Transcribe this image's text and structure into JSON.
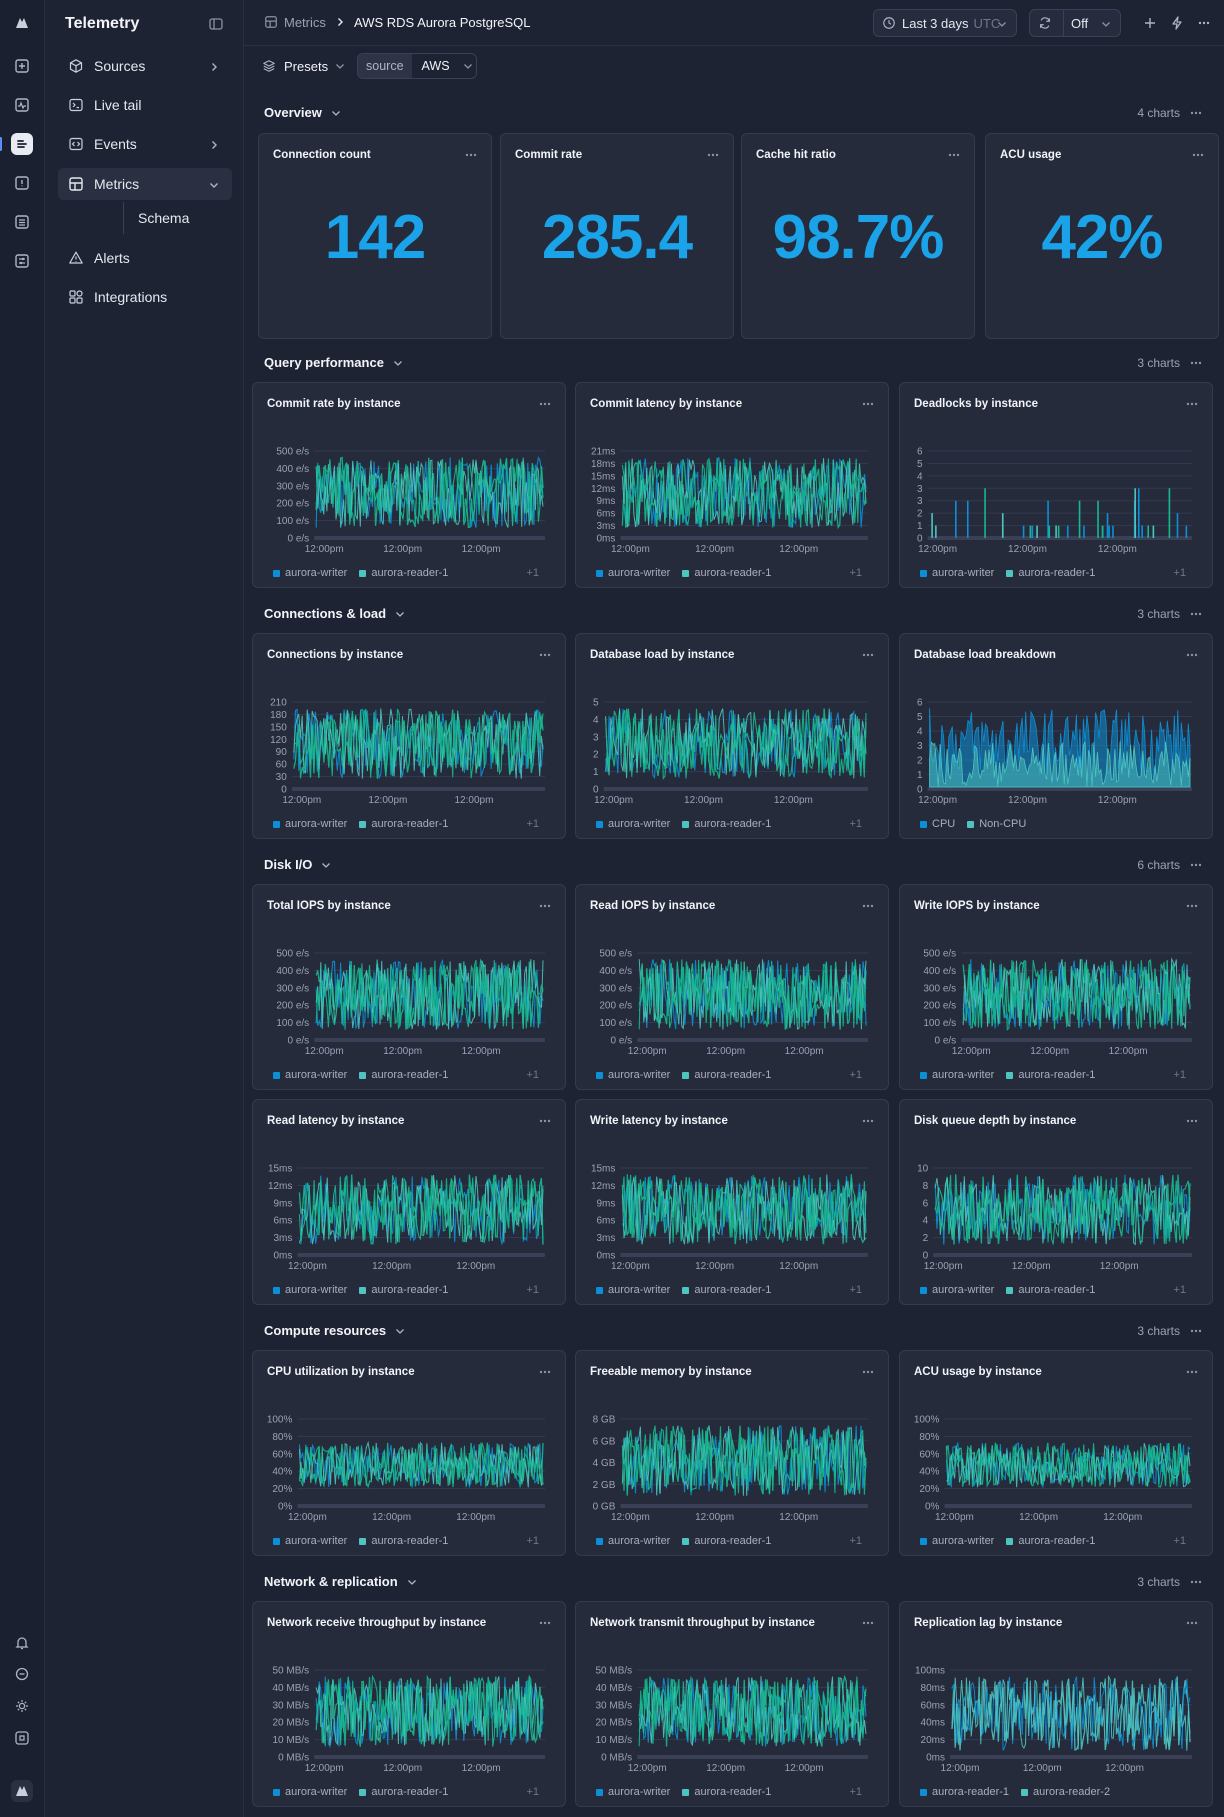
{
  "app": {
    "name": "Telemetry"
  },
  "sidebar": {
    "items": [
      {
        "label": "Sources",
        "icon": "box-icon",
        "chevron": true
      },
      {
        "label": "Live tail",
        "icon": "terminal-icon",
        "chevron": false
      },
      {
        "label": "Events",
        "icon": "code-icon",
        "chevron": true
      },
      {
        "label": "Metrics",
        "icon": "grid-icon",
        "chevron": true,
        "active": true
      },
      {
        "label": "Alerts",
        "icon": "warning-icon",
        "chevron": false
      },
      {
        "label": "Integrations",
        "icon": "integrations-icon",
        "chevron": false
      }
    ],
    "sub_item": "Schema"
  },
  "breadcrumb": {
    "parent": "Metrics",
    "current": "AWS RDS Aurora PostgreSQL"
  },
  "toolbar": {
    "time_range": "Last 3 days",
    "timezone": "UTC",
    "refresh": "Off"
  },
  "filters": {
    "presets": "Presets",
    "source_key": "source",
    "source_value": "AWS"
  },
  "colors": {
    "accent": "#1aa3e8",
    "writer": "#0c8fd6",
    "reader": "#4ec4c0",
    "green": "#17b890"
  },
  "overview": {
    "title": "Overview",
    "count": "4 charts",
    "stats": [
      {
        "title": "Connection count",
        "value": "142"
      },
      {
        "title": "Commit rate",
        "value": "285.4"
      },
      {
        "title": "Cache hit ratio",
        "value": "98.7%"
      },
      {
        "title": "ACU usage",
        "value": "42%"
      }
    ]
  },
  "sections": [
    {
      "title": "Query performance",
      "count": "3 charts",
      "charts": [
        {
          "title": "Commit rate by instance",
          "yticks": [
            "500 e/s",
            "400 e/s",
            "300 e/s",
            "200 e/s",
            "100 e/s",
            "0 e/s"
          ],
          "xticks": [
            "12:00pm",
            "12:00pm",
            "12:00pm"
          ],
          "legend": [
            "aurora-writer",
            "aurora-reader-1"
          ],
          "more": "+1"
        },
        {
          "title": "Commit latency by instance",
          "yticks": [
            "21ms",
            "18ms",
            "15ms",
            "12ms",
            "9ms",
            "6ms",
            "3ms",
            "0ms"
          ],
          "xticks": [
            "12:00pm",
            "12:00pm",
            "12:00pm"
          ],
          "legend": [
            "aurora-writer",
            "aurora-reader-1"
          ],
          "more": "+1"
        },
        {
          "title": "Deadlocks by instance",
          "yticks": [
            "6",
            "5",
            "4",
            "3",
            "3",
            "2",
            "1",
            "0"
          ],
          "xticks": [
            "12:00pm",
            "12:00pm",
            "12:00pm"
          ],
          "legend": [
            "aurora-writer",
            "aurora-reader-1"
          ],
          "more": "+1"
        }
      ]
    },
    {
      "title": "Connections & load",
      "count": "3 charts",
      "charts": [
        {
          "title": "Connections by instance",
          "yticks": [
            "210",
            "180",
            "150",
            "120",
            "90",
            "60",
            "30",
            "0"
          ],
          "xticks": [
            "12:00pm",
            "12:00pm",
            "12:00pm"
          ],
          "legend": [
            "aurora-writer",
            "aurora-reader-1"
          ],
          "more": "+1"
        },
        {
          "title": "Database load by instance",
          "yticks": [
            "5",
            "4",
            "3",
            "2",
            "1",
            "0"
          ],
          "xticks": [
            "12:00pm",
            "12:00pm",
            "12:00pm"
          ],
          "legend": [
            "aurora-writer",
            "aurora-reader-1"
          ],
          "more": "+1"
        },
        {
          "title": "Database load breakdown",
          "yticks": [
            "6",
            "5",
            "4",
            "3",
            "2",
            "1",
            "0"
          ],
          "xticks": [
            "12:00pm",
            "12:00pm",
            "12:00pm"
          ],
          "legend": [
            "CPU",
            "Non-CPU"
          ],
          "more": ""
        }
      ]
    },
    {
      "title": "Disk I/O",
      "count": "6 charts",
      "charts": [
        {
          "title": "Total IOPS by instance",
          "yticks": [
            "500 e/s",
            "400 e/s",
            "300 e/s",
            "200 e/s",
            "100 e/s",
            "0 e/s"
          ],
          "xticks": [
            "12:00pm",
            "12:00pm",
            "12:00pm"
          ],
          "legend": [
            "aurora-writer",
            "aurora-reader-1"
          ],
          "more": "+1"
        },
        {
          "title": "Read IOPS by instance",
          "yticks": [
            "500 e/s",
            "400 e/s",
            "300 e/s",
            "200 e/s",
            "100 e/s",
            "0 e/s"
          ],
          "xticks": [
            "12:00pm",
            "12:00pm",
            "12:00pm"
          ],
          "legend": [
            "aurora-writer",
            "aurora-reader-1"
          ],
          "more": "+1"
        },
        {
          "title": "Write IOPS by instance",
          "yticks": [
            "500 e/s",
            "400 e/s",
            "300 e/s",
            "200 e/s",
            "100 e/s",
            "0 e/s"
          ],
          "xticks": [
            "12:00pm",
            "12:00pm",
            "12:00pm"
          ],
          "legend": [
            "aurora-writer",
            "aurora-reader-1"
          ],
          "more": "+1"
        },
        {
          "title": "Read latency by instance",
          "yticks": [
            "15ms",
            "12ms",
            "9ms",
            "6ms",
            "3ms",
            "0ms"
          ],
          "xticks": [
            "12:00pm",
            "12:00pm",
            "12:00pm"
          ],
          "legend": [
            "aurora-writer",
            "aurora-reader-1"
          ],
          "more": "+1"
        },
        {
          "title": "Write latency by instance",
          "yticks": [
            "15ms",
            "12ms",
            "9ms",
            "6ms",
            "3ms",
            "0ms"
          ],
          "xticks": [
            "12:00pm",
            "12:00pm",
            "12:00pm"
          ],
          "legend": [
            "aurora-writer",
            "aurora-reader-1"
          ],
          "more": "+1"
        },
        {
          "title": "Disk queue depth by instance",
          "yticks": [
            "10",
            "8",
            "6",
            "4",
            "2",
            "0"
          ],
          "xticks": [
            "12:00pm",
            "12:00pm",
            "12:00pm"
          ],
          "legend": [
            "aurora-writer",
            "aurora-reader-1"
          ],
          "more": "+1"
        }
      ]
    },
    {
      "title": "Compute resources",
      "count": "3 charts",
      "charts": [
        {
          "title": "CPU utilization by instance",
          "yticks": [
            "100%",
            "80%",
            "60%",
            "40%",
            "20%",
            "0%"
          ],
          "xticks": [
            "12:00pm",
            "12:00pm",
            "12:00pm"
          ],
          "legend": [
            "aurora-writer",
            "aurora-reader-1"
          ],
          "more": "+1"
        },
        {
          "title": "Freeable memory by instance",
          "yticks": [
            "8 GB",
            "6 GB",
            "4 GB",
            "2 GB",
            "0 GB"
          ],
          "xticks": [
            "12:00pm",
            "12:00pm",
            "12:00pm"
          ],
          "legend": [
            "aurora-writer",
            "aurora-reader-1"
          ],
          "more": "+1"
        },
        {
          "title": "ACU usage by instance",
          "yticks": [
            "100%",
            "80%",
            "60%",
            "40%",
            "20%",
            "0%"
          ],
          "xticks": [
            "12:00pm",
            "12:00pm",
            "12:00pm"
          ],
          "legend": [
            "aurora-writer",
            "aurora-reader-1"
          ],
          "more": "+1"
        }
      ]
    },
    {
      "title": "Network & replication",
      "count": "3 charts",
      "charts": [
        {
          "title": "Network receive throughput by instance",
          "yticks": [
            "50 MB/s",
            "40 MB/s",
            "30 MB/s",
            "20 MB/s",
            "10 MB/s",
            "0 MB/s"
          ],
          "xticks": [
            "12:00pm",
            "12:00pm",
            "12:00pm"
          ],
          "legend": [
            "aurora-writer",
            "aurora-reader-1"
          ],
          "more": "+1"
        },
        {
          "title": "Network transmit throughput by instance",
          "yticks": [
            "50 MB/s",
            "40 MB/s",
            "30 MB/s",
            "20 MB/s",
            "10 MB/s",
            "0 MB/s"
          ],
          "xticks": [
            "12:00pm",
            "12:00pm",
            "12:00pm"
          ],
          "legend": [
            "aurora-writer",
            "aurora-reader-1"
          ],
          "more": "+1"
        },
        {
          "title": "Replication lag by instance",
          "yticks": [
            "100ms",
            "80ms",
            "60ms",
            "40ms",
            "20ms",
            "0ms"
          ],
          "xticks": [
            "12:00pm",
            "12:00pm",
            "12:00pm"
          ],
          "legend": [
            "aurora-reader-1",
            "aurora-reader-2"
          ],
          "more": ""
        }
      ]
    }
  ]
}
